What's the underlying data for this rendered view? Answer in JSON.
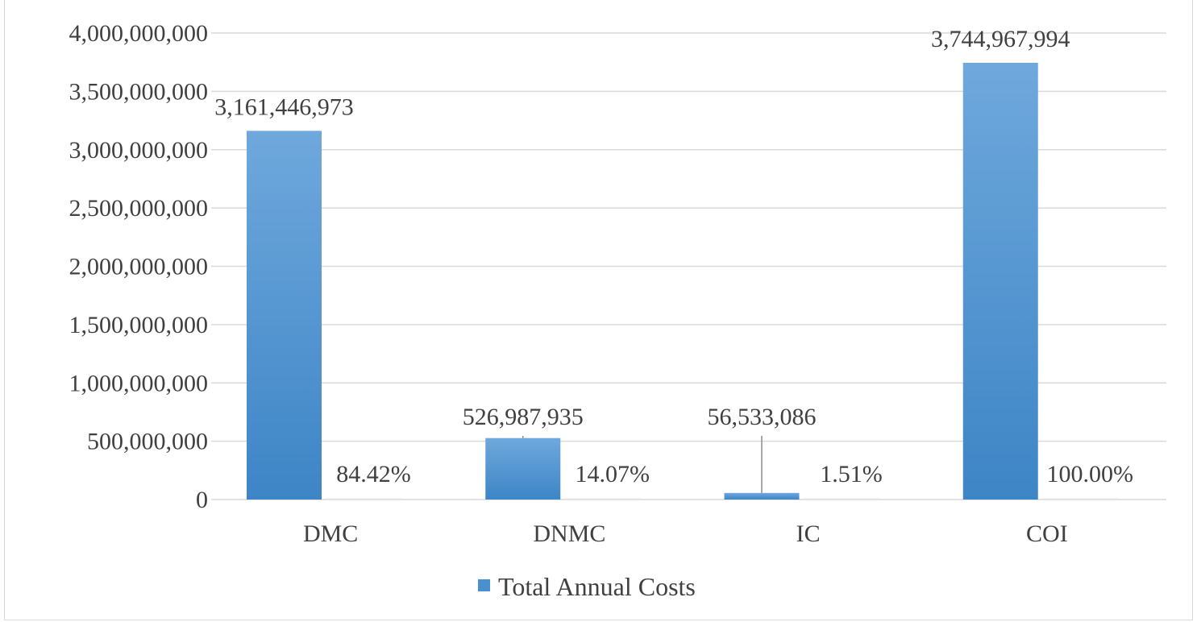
{
  "chart_data": {
    "type": "bar",
    "categories": [
      "DMC",
      "DNMC",
      "IC",
      "COI"
    ],
    "series": [
      {
        "name": "Total Annual Costs",
        "values": [
          3161446973,
          526987935,
          56533086,
          3744967994
        ],
        "value_labels": [
          "3,161,446,973",
          "526,987,935",
          "56,533,086",
          "3,744,967,994"
        ]
      },
      {
        "values": [
          84.42,
          14.07,
          1.51,
          100.0
        ],
        "value_labels": [
          "84.42%",
          "14.07%",
          "1.51%",
          "100.00%"
        ]
      }
    ],
    "yticks": [
      "0",
      "500,000,000",
      "1,000,000,000",
      "1,500,000,000",
      "2,000,000,000",
      "2,500,000,000",
      "3,000,000,000",
      "3,500,000,000",
      "4,000,000,000"
    ],
    "ylim": [
      0,
      4000000000
    ],
    "grid": true,
    "legend_position": "bottom",
    "legend": [
      "Total Annual Costs"
    ],
    "colors": {
      "bar_top": "#6fa8dc",
      "bar_bottom": "#3d85c6",
      "grid": "#d9d9d9",
      "text": "#404040"
    }
  }
}
